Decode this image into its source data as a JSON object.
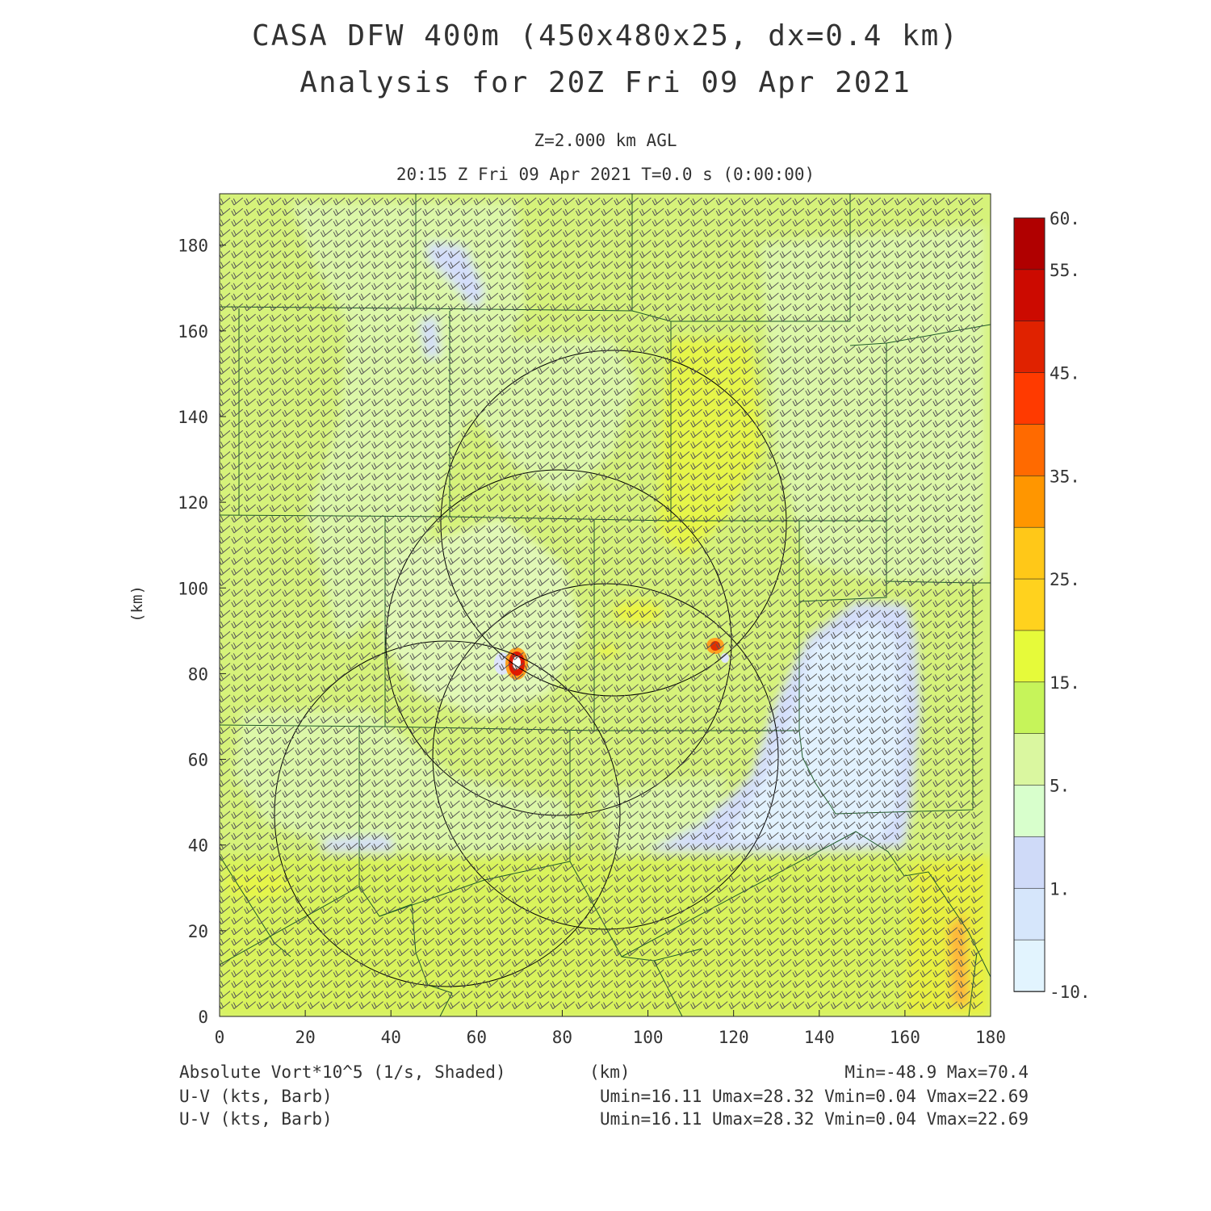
{
  "title": {
    "line1": "CASA DFW 400m (450x480x25, dx=0.4 km)",
    "line2": "Analysis for 20Z Fri 09 Apr 2021"
  },
  "subtitle": {
    "level": "Z=2.000 km AGL",
    "time": "20:15 Z Fri 09 Apr 2021    T=0.0 s (0:00:00)"
  },
  "axes": {
    "xlabel": "(km)",
    "ylabel": "(km)",
    "x_ticks": [
      "0",
      "20",
      "40",
      "60",
      "80",
      "100",
      "120",
      "140",
      "160",
      "180"
    ],
    "y_ticks": [
      "0",
      "20",
      "40",
      "60",
      "80",
      "100",
      "120",
      "140",
      "160",
      "180"
    ],
    "xlim": [
      0,
      180
    ],
    "ylim": [
      0,
      192
    ]
  },
  "colorbar": {
    "labels": [
      "60.",
      "55.",
      "45.",
      "35.",
      "25.",
      "15.",
      "5.",
      "1.",
      "-10."
    ],
    "colors": [
      "#b00000",
      "#cc0a00",
      "#e02200",
      "#ff3a00",
      "#ff6a00",
      "#ff9600",
      "#ffc818",
      "#ffd21e",
      "#e6fa3a",
      "#c6f45a",
      "#daf7a0",
      "#d8ffcc",
      "#cfdaf8",
      "#d6e6fb",
      "#e2f4fe"
    ]
  },
  "field_colors": {
    "base": "#d6f27a",
    "light_green": "#dcf7a8",
    "pale": "#e4fac4",
    "yellow": "#e8f545",
    "blue": "#d4defa",
    "light_blue": "#e2f2fe",
    "orange": "#ffb23a",
    "red": "#d01000",
    "county_lines": "#1e5a28",
    "radar_rings": "#000000",
    "barbs": "#555555"
  },
  "footer": {
    "left1": "Absolute Vort*10^5 (1/s, Shaded)",
    "left2": "U-V (kts, Barb)",
    "left3": "U-V (kts, Barb)",
    "center_unit": "(km)",
    "minmax": "Min=-48.9 Max=70.4",
    "uv1": "Umin=16.11 Umax=28.32 Vmin=0.04 Vmax=22.69",
    "uv2": "Umin=16.11 Umax=28.32 Vmin=0.04 Vmax=22.69"
  }
}
